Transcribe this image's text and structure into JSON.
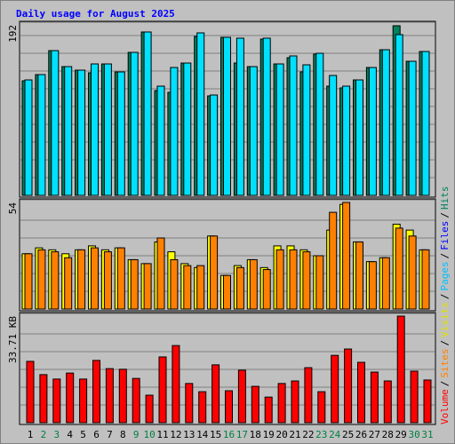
{
  "chart_data": {
    "type": "bar",
    "title": "Daily usage for August 2025",
    "categories": [
      "1",
      "2",
      "3",
      "4",
      "5",
      "6",
      "7",
      "8",
      "9",
      "10",
      "11",
      "12",
      "13",
      "14",
      "15",
      "16",
      "17",
      "18",
      "19",
      "20",
      "21",
      "22",
      "23",
      "24",
      "25",
      "26",
      "27",
      "28",
      "29",
      "30",
      "31"
    ],
    "category_colors": [
      "#000000",
      "#008040",
      "#008040",
      "#000000",
      "#000000",
      "#000000",
      "#000000",
      "#000000",
      "#008040",
      "#008040",
      "#000000",
      "#000000",
      "#000000",
      "#000000",
      "#000000",
      "#008040",
      "#008040",
      "#000000",
      "#000000",
      "#000000",
      "#000000",
      "#000000",
      "#008040",
      "#008040",
      "#000000",
      "#000000",
      "#000000",
      "#000000",
      "#000000",
      "#008040",
      "#008040"
    ],
    "legend": [
      {
        "name": "Volume",
        "color": "#ff0000"
      },
      {
        "name": "Sites",
        "color": "#ff8000"
      },
      {
        "name": "Visits",
        "color": "#e0e000"
      },
      {
        "name": "Pages",
        "color": "#00c0ff"
      },
      {
        "name": "Files",
        "color": "#0000ff"
      },
      {
        "name": "Hits",
        "color": "#00805c"
      }
    ],
    "legend_separator": "/",
    "panels": [
      {
        "ylim": [
          0,
          192
        ],
        "yticks": [
          192
        ],
        "series": [
          {
            "color": "#00805c",
            "values": [
              129,
              136,
              163,
              145,
              141,
              138,
              148,
              139,
              161,
              184,
              118,
              116,
              149,
              179,
              112,
              178,
              149,
              145,
              176,
              148,
              155,
              139,
              159,
              123,
              121,
              130,
              144,
              164,
              191,
              151,
              162
            ]
          },
          {
            "color": "#00e0ff",
            "values": [
              130,
              136,
              163,
              145,
              141,
              148,
              148,
              139,
              161,
              184,
              123,
              144,
              149,
              183,
              113,
              178,
              177,
              145,
              177,
              148,
              157,
              147,
              160,
              135,
              123,
              130,
              144,
              164,
              181,
              151,
              162
            ]
          }
        ]
      },
      {
        "ylim": [
          0,
          54
        ],
        "yticks": [
          54
        ],
        "series": [
          {
            "color": "#ffff00",
            "values": [
              28,
              31,
              30,
              28,
              30,
              32,
              30,
              31,
              25,
              23,
              34,
              29,
              23,
              21,
              37,
              17,
              22,
              25,
              21,
              32,
              32,
              30,
              27,
              40,
              53,
              34,
              24,
              26,
              43,
              40,
              30
            ]
          },
          {
            "color": "#ff8000",
            "values": [
              28,
              30,
              29,
              26,
              30,
              31,
              29,
              31,
              25,
              23,
              36,
              25,
              22,
              22,
              37,
              17,
              21,
              25,
              20,
              30,
              30,
              29,
              27,
              49,
              54,
              34,
              24,
              26,
              41,
              37,
              30
            ]
          }
        ]
      },
      {
        "ylim": [
          0,
          33.71
        ],
        "yticks": [
          {
            "value": 33.71,
            "label": "33.71 KB"
          }
        ],
        "series": [
          {
            "color": "#ff0000",
            "values": [
              19.4,
              15.2,
              13.8,
              15.7,
              13.8,
              19.7,
              17.1,
              16.9,
              14.0,
              8.7,
              20.8,
              24.4,
              12.4,
              9.8,
              18.3,
              10.1,
              16.6,
              11.5,
              8.1,
              12.4,
              13.2,
              17.4,
              9.8,
              21.3,
              23.3,
              19.1,
              16.0,
              13.2,
              33.71,
              16.3,
              13.5
            ]
          }
        ]
      }
    ]
  }
}
